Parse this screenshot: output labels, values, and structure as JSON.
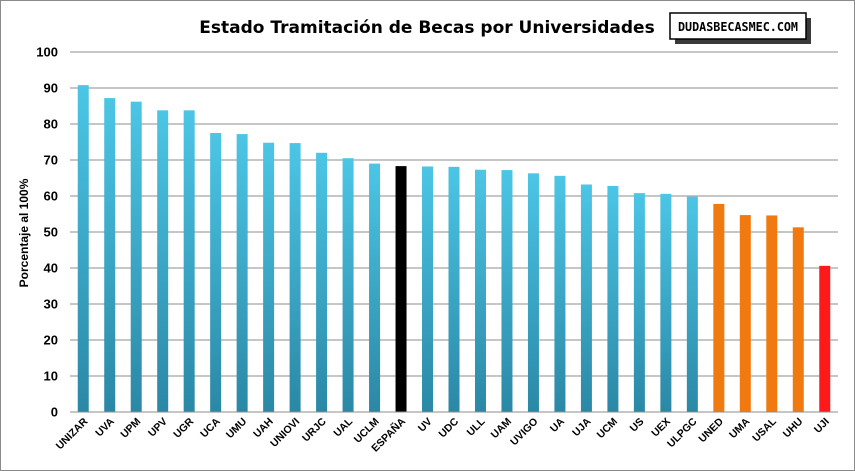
{
  "chart_data": {
    "type": "bar",
    "title": "Estado Tramitación de Becas por Universidades",
    "ylabel": "Porcentaje al 100%",
    "xlabel": "",
    "ylim": [
      0,
      100
    ],
    "yticks": [
      0,
      10,
      20,
      30,
      40,
      50,
      60,
      70,
      80,
      90,
      100
    ],
    "grid": true,
    "categories": [
      "UNIZAR",
      "UVA",
      "UPM",
      "UPV",
      "UGR",
      "UCA",
      "UMU",
      "UAH",
      "UNIOVI",
      "URJC",
      "UAL",
      "UCLM",
      "ESPAÑA",
      "UV",
      "UDC",
      "ULL",
      "UAM",
      "UVIGO",
      "UA",
      "UJA",
      "UCM",
      "US",
      "UEX",
      "ULPGC",
      "UNED",
      "UMA",
      "USAL",
      "UHU",
      "UJI"
    ],
    "values": [
      90.8,
      87.2,
      86.2,
      83.8,
      83.8,
      77.5,
      77.2,
      74.8,
      74.7,
      72.0,
      70.5,
      69.0,
      68.3,
      68.2,
      68.1,
      67.3,
      67.2,
      66.3,
      65.6,
      63.2,
      62.8,
      60.8,
      60.6,
      59.8,
      57.8,
      54.7,
      54.6,
      51.3,
      40.6
    ],
    "bar_colors": [
      "cyan",
      "cyan",
      "cyan",
      "cyan",
      "cyan",
      "cyan",
      "cyan",
      "cyan",
      "cyan",
      "cyan",
      "cyan",
      "cyan",
      "black",
      "cyan",
      "cyan",
      "cyan",
      "cyan",
      "cyan",
      "cyan",
      "cyan",
      "cyan",
      "cyan",
      "cyan",
      "cyan",
      "orange",
      "orange",
      "orange",
      "orange",
      "red"
    ],
    "palette": {
      "cyan_top": "#4cc6e6",
      "cyan_bottom": "#2a88a5",
      "black": "#000000",
      "orange": "#f07a10",
      "red": "#ff1a1a",
      "grid": "#8c8c8c"
    }
  },
  "logo": {
    "text": "DUDASBECASMEC.COM"
  }
}
